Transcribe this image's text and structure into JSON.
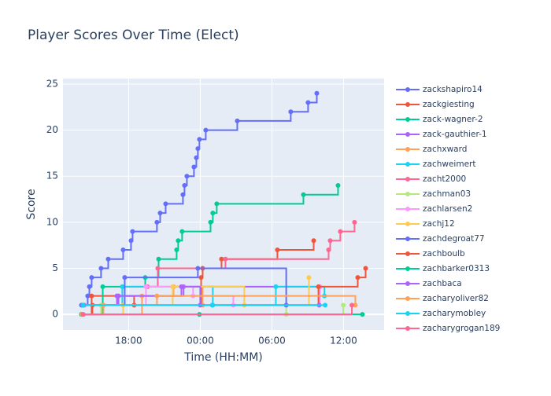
{
  "chart_data": {
    "type": "step-line",
    "title": "Player Scores Over Time (Elect)",
    "x_label": "Time (HH:MM)",
    "y_label": "Score",
    "xlim": [
      12.5,
      39.4
    ],
    "ylim": [
      -1.7,
      25.6
    ],
    "xticks": [
      {
        "value": 18,
        "label": "18:00"
      },
      {
        "value": 24,
        "label": "00:00"
      },
      {
        "value": 30,
        "label": "06:00"
      },
      {
        "value": 36,
        "label": "12:00"
      }
    ],
    "yticks": [
      0,
      5,
      10,
      15,
      20,
      25
    ],
    "grid": true,
    "legend": "right",
    "series": [
      {
        "name": "zackshapiro14",
        "color": "#636efa",
        "x": [
          14.11,
          14.57,
          14.71,
          14.9,
          15.69,
          16.29,
          17.54,
          18.2,
          18.33,
          20.37,
          20.64,
          21.1,
          22.55,
          22.68,
          22.88,
          23.47,
          23.67,
          23.8,
          23.93,
          24.46,
          27.1,
          31.58,
          33.03,
          33.76
        ],
        "values": [
          1,
          2,
          3,
          4,
          5,
          6,
          7,
          8,
          9,
          10,
          11,
          12,
          13,
          14,
          15,
          16,
          17,
          18,
          19,
          20,
          21,
          22,
          23,
          24
        ]
      },
      {
        "name": "zackgiesting",
        "color": "#EF553B",
        "x": [
          14.11,
          14.9,
          18.46,
          24.07,
          24.2,
          25.78,
          30.46,
          33.5
        ],
        "values": [
          0,
          2,
          1,
          4,
          5,
          6,
          7,
          8
        ]
      },
      {
        "name": "zack-wagner-2",
        "color": "#00cc96",
        "x": [
          14.05,
          15.83,
          19.39,
          20.51,
          22.02,
          22.15,
          22.48,
          24.86,
          25.05,
          25.38,
          32.64,
          35.54
        ],
        "values": [
          0,
          3,
          4,
          6,
          7,
          8,
          9,
          10,
          11,
          12,
          13,
          14
        ]
      },
      {
        "name": "zack-gauthier-1",
        "color": "#ab63fa",
        "x": [
          14.24,
          17.15,
          22.6,
          34.02
        ],
        "values": [
          1,
          2,
          3,
          3
        ]
      },
      {
        "name": "zachxward",
        "color": "#FFA15A",
        "x": [
          14.11,
          19.12,
          21.76,
          24.2
        ],
        "values": [
          0,
          2,
          3,
          1
        ]
      },
      {
        "name": "zachweimert",
        "color": "#19d3f3",
        "x": [
          14.31,
          17.47,
          25.05,
          30.33,
          34.4
        ],
        "values": [
          1,
          3,
          1,
          3,
          2
        ]
      },
      {
        "name": "zacht2000",
        "color": "#FF6692",
        "x": [
          19.58,
          20.44,
          26.11,
          34.75,
          34.88,
          35.73,
          36.92
        ],
        "values": [
          3,
          5,
          6,
          7,
          8,
          9,
          10
        ]
      },
      {
        "name": "zachman03",
        "color": "#B6E880",
        "x": [
          14.18,
          15.69,
          31.2,
          35.98
        ],
        "values": [
          0,
          1,
          0,
          1
        ]
      },
      {
        "name": "zachlarsen2",
        "color": "#FF97FF",
        "x": [
          14.31,
          19.45,
          23.4,
          26.77,
          34.02
        ],
        "values": [
          1,
          3,
          2,
          1,
          3
        ]
      },
      {
        "name": "zachj12",
        "color": "#FECB52",
        "x": [
          14.05,
          17.54,
          21.69,
          27.69,
          33.1
        ],
        "values": [
          0,
          1,
          3,
          1,
          4
        ]
      },
      {
        "name": "zachdegroat77",
        "color": "#636efa",
        "x": [
          14.05,
          17.67,
          23.8,
          31.2
        ],
        "values": [
          1,
          4,
          5,
          1
        ]
      },
      {
        "name": "zachboulb",
        "color": "#EF553B",
        "x": [
          14.05,
          14.97,
          33.9,
          37.19,
          37.85
        ],
        "values": [
          0,
          1,
          3,
          4,
          5
        ]
      },
      {
        "name": "zachbarker0313",
        "color": "#00cc96",
        "x": [
          14.05,
          23.93,
          37.58
        ],
        "values": [
          0,
          0,
          0
        ]
      },
      {
        "name": "zachbaca",
        "color": "#ab63fa",
        "x": [
          14.24,
          17.02,
          22.42,
          24.0,
          33.96
        ],
        "values": [
          1,
          2,
          3,
          1,
          1
        ]
      },
      {
        "name": "zacharyoliver82",
        "color": "#FFA15A",
        "x": [
          14.11,
          15.89,
          20.37,
          36.99
        ],
        "values": [
          0,
          1,
          2,
          1
        ]
      },
      {
        "name": "zacharymobley",
        "color": "#19d3f3",
        "x": [
          14.18,
          25.0,
          34.46
        ],
        "values": [
          1,
          1,
          1
        ]
      },
      {
        "name": "zacharygrogan189",
        "color": "#FF6692",
        "x": [
          14.2,
          36.7
        ],
        "values": [
          0,
          1
        ]
      }
    ]
  }
}
